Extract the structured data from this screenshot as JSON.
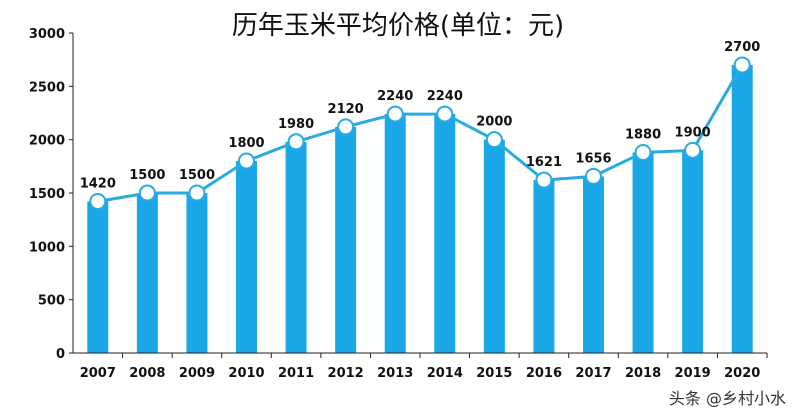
{
  "chart_data": {
    "type": "bar",
    "title": "历年玉米平均价格(单位：元)",
    "categories": [
      "2007",
      "2008",
      "2009",
      "2010",
      "2011",
      "2012",
      "2013",
      "2014",
      "2015",
      "2016",
      "2017",
      "2018",
      "2019",
      "2020"
    ],
    "series": [
      {
        "values": [
          1420,
          1500,
          1500,
          1800,
          1980,
          2120,
          2240,
          2240,
          2000,
          1621,
          1656,
          1880,
          1900,
          2700
        ]
      }
    ],
    "overlay": "line",
    "ylim": [
      0,
      3000
    ],
    "yticks": [
      0,
      500,
      1000,
      1500,
      2000,
      2500,
      3000
    ],
    "grid": false,
    "colors": {
      "bar": "#1aa7e8",
      "line": "#29abe2"
    }
  },
  "watermark": "头条 @乡村小水"
}
